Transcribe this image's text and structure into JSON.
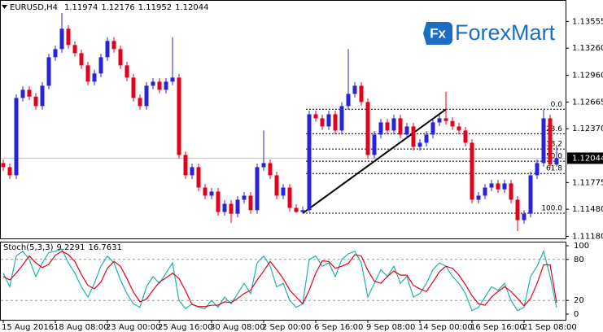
{
  "chart_data": [
    {
      "type": "candlestick",
      "title": "EURUSD,H4",
      "categories": [
        "15 Aug 2016",
        null,
        null,
        null,
        null,
        null,
        null,
        null,
        "18 Aug 08:00",
        null,
        null,
        null,
        null,
        null,
        null,
        null,
        "23 Aug 00:00",
        null,
        null,
        null,
        null,
        null,
        null,
        null,
        "25 Aug 16:00",
        null,
        null,
        null,
        null,
        null,
        null,
        null,
        "30 Aug 08:00",
        null,
        null,
        null,
        null,
        null,
        null,
        null,
        "2 Sep 00:00",
        null,
        null,
        null,
        null,
        null,
        null,
        null,
        "6 Sep 16:00",
        null,
        null,
        null,
        null,
        null,
        null,
        null,
        "9 Sep 08:00",
        null,
        null,
        null,
        null,
        null,
        null,
        null,
        "14 Sep 00:00",
        null,
        null,
        null,
        null,
        null,
        null,
        null,
        "16 Sep 16:00",
        null,
        null,
        null,
        null,
        null,
        null,
        null,
        "21 Sep 08:00",
        null,
        null,
        null,
        null,
        null
      ],
      "open": [
        1.1199,
        1.11945,
        1.11855,
        1.1271,
        1.128,
        1.12725,
        1.1262,
        1.12845,
        1.1316,
        1.1325,
        1.13475,
        1.13295,
        1.13205,
        1.1307,
        1.1289,
        1.1298,
        1.1316,
        1.1334,
        1.1325,
        1.1307,
        1.12935,
        1.1271,
        1.1262,
        1.12845,
        1.1289,
        1.128,
        1.1289,
        1.12935,
        1.1208,
        1.11855,
        1.11945,
        1.1172,
        1.1163,
        1.11675,
        1.1145,
        1.1154,
        1.1143,
        1.11585,
        1.1163,
        1.1147,
        1.11945,
        1.1199,
        1.11855,
        1.1163,
        1.1172,
        1.11495,
        1.1145,
        1.1147,
        1.1253,
        1.12485,
        1.12395,
        1.1253,
        1.1235,
        1.1262,
        1.12755,
        1.12845,
        1.12665,
        1.1208,
        1.12305,
        1.1244,
        1.1235,
        1.12485,
        1.12305,
        1.12395,
        1.1217,
        1.12215,
        1.12305,
        1.1244,
        1.12485,
        1.12455,
        1.12395,
        1.1235,
        1.12215,
        1.11585,
        1.1163,
        1.1172,
        1.11765,
        1.117,
        1.11765,
        1.11585,
        1.1136,
        1.1143,
        1.11855,
        1.1199,
        1.12485,
        1.11974
      ],
      "high": [
        1.1203,
        1.11985,
        1.1275,
        1.1284,
        1.1284,
        1.12765,
        1.12885,
        1.132,
        1.1329,
        1.1365,
        1.13515,
        1.13335,
        1.13245,
        1.1311,
        1.1302,
        1.132,
        1.1338,
        1.1338,
        1.1329,
        1.1311,
        1.12975,
        1.1275,
        1.12885,
        1.1293,
        1.1293,
        1.1293,
        1.1338,
        1.12975,
        1.1212,
        1.11985,
        1.11985,
        1.1176,
        1.11715,
        1.11715,
        1.1158,
        1.1158,
        1.11625,
        1.1167,
        1.1167,
        1.11985,
        1.1235,
        1.1203,
        1.11895,
        1.1176,
        1.1176,
        1.11535,
        1.1151,
        1.1257,
        1.1257,
        1.12525,
        1.1257,
        1.1257,
        1.1266,
        1.1325,
        1.12885,
        1.12885,
        1.12705,
        1.12345,
        1.1248,
        1.1248,
        1.12525,
        1.12525,
        1.12435,
        1.12435,
        1.12255,
        1.12345,
        1.1248,
        1.12525,
        1.1278,
        1.12495,
        1.12435,
        1.1239,
        1.12255,
        1.1167,
        1.1176,
        1.11805,
        1.11805,
        1.11805,
        1.11805,
        1.11625,
        1.1147,
        1.11895,
        1.1203,
        1.1258,
        1.12525,
        1.12176
      ],
      "low": [
        1.11905,
        1.11815,
        1.11815,
        1.1267,
        1.12685,
        1.1258,
        1.1258,
        1.12805,
        1.1312,
        1.1321,
        1.13255,
        1.13165,
        1.1303,
        1.1285,
        1.1285,
        1.1294,
        1.1312,
        1.1321,
        1.1303,
        1.12895,
        1.1267,
        1.1258,
        1.1258,
        1.12805,
        1.1276,
        1.1276,
        1.1285,
        1.1204,
        1.11815,
        1.11815,
        1.1168,
        1.1159,
        1.1159,
        1.1141,
        1.1141,
        1.1133,
        1.1139,
        1.11545,
        1.1143,
        1.1143,
        1.11905,
        1.11815,
        1.1159,
        1.1159,
        1.11455,
        1.1144,
        1.11436,
        1.1145,
        1.12445,
        1.12355,
        1.12355,
        1.1231,
        1.1231,
        1.1258,
        1.12715,
        1.12625,
        1.1204,
        1.1204,
        1.12265,
        1.1231,
        1.1231,
        1.12265,
        1.12265,
        1.1213,
        1.1213,
        1.12175,
        1.12265,
        1.124,
        1.12415,
        1.12355,
        1.1231,
        1.12175,
        1.11545,
        1.11545,
        1.1159,
        1.1168,
        1.1166,
        1.1166,
        1.11545,
        1.1124,
        1.1132,
        1.1139,
        1.11815,
        1.1195,
        1.11934,
        1.11952
      ],
      "close": [
        1.11945,
        1.11855,
        1.1271,
        1.128,
        1.12725,
        1.1262,
        1.12845,
        1.1316,
        1.1325,
        1.13475,
        1.13295,
        1.13205,
        1.1307,
        1.1289,
        1.1298,
        1.1316,
        1.1334,
        1.1325,
        1.1307,
        1.12935,
        1.1271,
        1.1262,
        1.12845,
        1.1289,
        1.128,
        1.1289,
        1.12935,
        1.1208,
        1.11855,
        1.11945,
        1.1172,
        1.1163,
        1.11675,
        1.1145,
        1.1154,
        1.1143,
        1.11585,
        1.1163,
        1.1147,
        1.11945,
        1.1199,
        1.11855,
        1.1163,
        1.1172,
        1.11495,
        1.1145,
        1.1147,
        1.1253,
        1.12485,
        1.12395,
        1.1253,
        1.1235,
        1.1262,
        1.12755,
        1.12845,
        1.12665,
        1.1208,
        1.12305,
        1.1244,
        1.1235,
        1.12485,
        1.12305,
        1.12395,
        1.1217,
        1.12215,
        1.12305,
        1.1244,
        1.12485,
        1.12455,
        1.12395,
        1.1235,
        1.12215,
        1.11585,
        1.1163,
        1.1172,
        1.11765,
        1.117,
        1.11765,
        1.11585,
        1.1136,
        1.1143,
        1.11855,
        1.1199,
        1.12485,
        1.11974,
        1.12044
      ],
      "up_color": "#2424d8",
      "down_color": "#e3001b",
      "ylim": [
        1.11153,
        1.13788
      ],
      "yticks": [
        1.13555,
        {
          "value": 1.1326,
          "label": "1.13260"
        },
        {
          "value": 1.1296,
          "label": "1.12960"
        },
        1.12665,
        {
          "value": 1.1237,
          "label": "1.12370"
        },
        1.11775,
        {
          "value": 1.1148,
          "label": "1.11480"
        },
        {
          "value": 1.1118,
          "label": "1.11180"
        }
      ],
      "trendline": {
        "x": [
          46,
          68
        ],
        "y": [
          1.11436,
          1.12585
        ],
        "color": "#000000"
      },
      "fibonacci": {
        "start": 46,
        "color": "#000000",
        "levels": [
          {
            "label": "0.0",
            "value": 1.12585
          },
          {
            "label": "23.6",
            "value": 1.12314
          },
          {
            "label": "38.2",
            "value": 1.12146
          },
          {
            "label": "50.0",
            "value": 1.12011
          },
          {
            "label": "61.8",
            "value": 1.11875
          },
          {
            "label": "100.0",
            "value": 1.11436
          }
        ]
      }
    },
    {
      "type": "line",
      "title": "Stoch(5,3,3)",
      "series": [
        {
          "color": "#20b2aa",
          "values": [
            60,
            40,
            85,
            92,
            80,
            55,
            75,
            90,
            92,
            95,
            75,
            60,
            40,
            25,
            45,
            70,
            85,
            75,
            50,
            30,
            15,
            10,
            40,
            55,
            45,
            60,
            75,
            20,
            8,
            15,
            10,
            8,
            20,
            10,
            25,
            15,
            30,
            45,
            30,
            75,
            85,
            70,
            40,
            45,
            20,
            10,
            15,
            80,
            85,
            70,
            75,
            55,
            80,
            88,
            92,
            75,
            25,
            45,
            65,
            55,
            70,
            45,
            55,
            25,
            30,
            45,
            65,
            75,
            70,
            55,
            45,
            30,
            5,
            10,
            25,
            40,
            35,
            45,
            20,
            5,
            10,
            55,
            70,
            92,
            55,
            9.2291
          ]
        },
        {
          "color": "#e3001b",
          "values": [
            55,
            50,
            60,
            72,
            85,
            75,
            68,
            73,
            86,
            92,
            87,
            77,
            58,
            42,
            37,
            47,
            67,
            77,
            70,
            52,
            32,
            18,
            22,
            35,
            47,
            53,
            60,
            52,
            34,
            14,
            11,
            11,
            13,
            13,
            18,
            17,
            23,
            30,
            35,
            50,
            63,
            77,
            65,
            52,
            35,
            25,
            15,
            35,
            60,
            78,
            77,
            67,
            70,
            74,
            87,
            85,
            64,
            48,
            45,
            55,
            63,
            57,
            57,
            42,
            37,
            33,
            47,
            62,
            70,
            67,
            57,
            43,
            27,
            15,
            13,
            25,
            33,
            40,
            33,
            23,
            12,
            23,
            45,
            72,
            72,
            16.7631
          ]
        }
      ],
      "ylim": [
        0,
        100
      ],
      "yticks": [
        100,
        80,
        20,
        0
      ]
    }
  ],
  "logo": {
    "mark": "Fx",
    "name": "ForexMart"
  }
}
